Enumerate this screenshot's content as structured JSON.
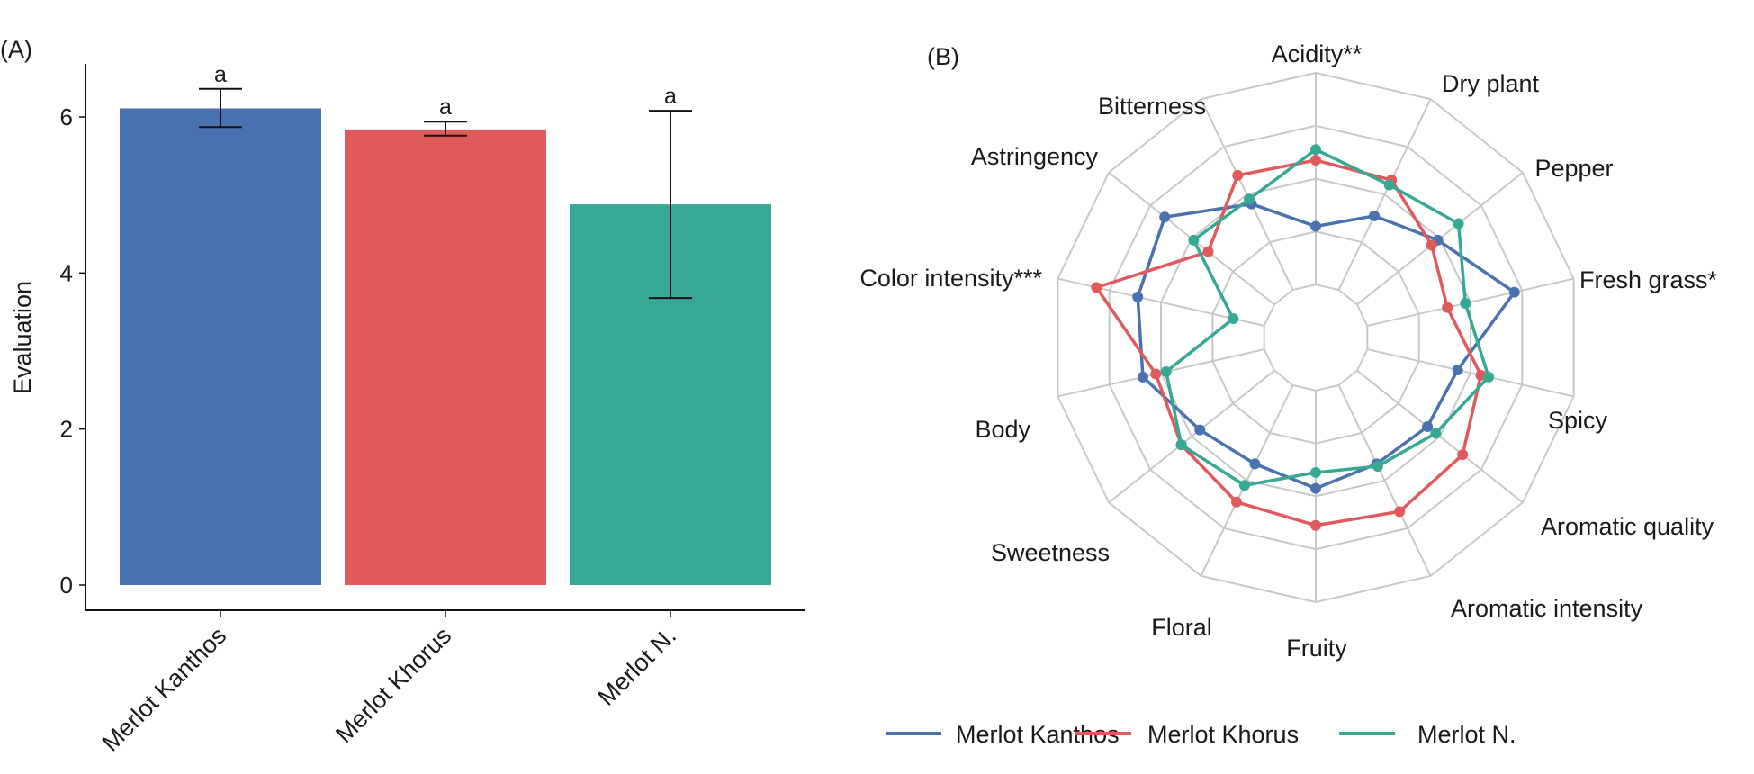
{
  "colors": {
    "Merlot Kanthos": "#4a72b0",
    "Merlot Khorus": "#e05a5c",
    "Merlot N.": "#37a893",
    "grid": "#c8c8c8",
    "axis": "#1a1a1a"
  },
  "chart_data": [
    {
      "panel_label": "(A)",
      "type": "bar",
      "categories": [
        "Merlot Kanthos",
        "Merlot Khorus",
        "Merlot N."
      ],
      "values": [
        6.11,
        5.84,
        4.88
      ],
      "error_bars": [
        {
          "low": 5.87,
          "high": 6.36
        },
        {
          "low": 5.76,
          "high": 5.94
        },
        {
          "low": 3.68,
          "high": 6.08
        }
      ],
      "significance_letters": [
        "a",
        "a",
        "a"
      ],
      "xlabel": "",
      "ylabel": "Evaluation",
      "ylim": [
        0,
        6.7
      ],
      "yticks": [
        0,
        2,
        4,
        6
      ],
      "grid": false
    },
    {
      "panel_label": "(B)",
      "type": "radar",
      "axes": [
        "Acidity**",
        "Dry plant",
        "Pepper",
        "Fresh grass*",
        "Spicy",
        "Aromatic quality",
        "Aromatic intensity",
        "Fruity",
        "Floral",
        "Sweetness",
        "Body",
        "Color intensity***",
        "Astringency",
        "Bitterness"
      ],
      "rlim": [
        0,
        5
      ],
      "rings": [
        1,
        2,
        3,
        4,
        5
      ],
      "grid": true,
      "legend_position": "bottom",
      "series": [
        {
          "name": "Merlot Kanthos",
          "values": [
            2.1,
            2.55,
            2.95,
            3.85,
            2.75,
            2.7,
            2.65,
            2.85,
            2.65,
            2.8,
            3.35,
            3.45,
            3.65,
            2.8
          ]
        },
        {
          "name": "Merlot Khorus",
          "values": [
            3.35,
            3.3,
            2.8,
            2.55,
            3.2,
            3.55,
            3.65,
            3.55,
            3.45,
            3.25,
            3.1,
            4.25,
            2.6,
            3.4
          ]
        },
        {
          "name": "Merlot N.",
          "values": [
            3.55,
            3.2,
            3.45,
            2.9,
            3.35,
            2.9,
            2.7,
            2.55,
            3.1,
            3.25,
            2.9,
            1.6,
            2.95,
            2.9
          ]
        }
      ]
    }
  ]
}
